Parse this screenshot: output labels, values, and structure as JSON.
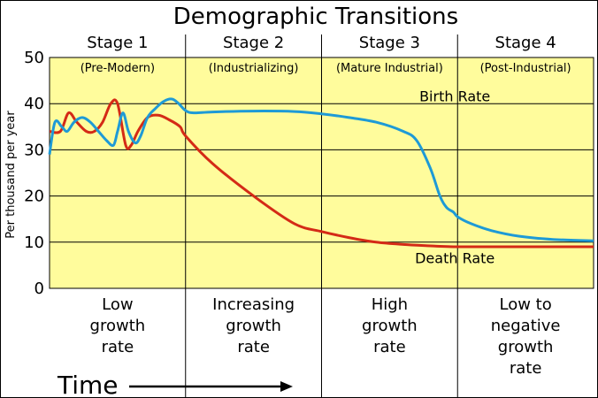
{
  "chart_data": {
    "type": "line",
    "title": "Demographic Transitions",
    "ylabel": "Per thousand per year",
    "xlabel": "Time",
    "ylim": [
      0,
      50
    ],
    "yticks": [
      0,
      10,
      20,
      30,
      40,
      50
    ],
    "grid": true,
    "stages": [
      {
        "label": "Stage 1",
        "sub": "(Pre-Modern)",
        "growth": [
          "Low",
          "growth",
          "rate"
        ]
      },
      {
        "label": "Stage 2",
        "sub": "(Industrializing)",
        "growth": [
          "Increasing",
          "growth",
          "rate"
        ]
      },
      {
        "label": "Stage 3",
        "sub": "(Mature Industrial)",
        "growth": [
          "High",
          "growth",
          "rate"
        ]
      },
      {
        "label": "Stage 4",
        "sub": "(Post-Industrial)",
        "growth": [
          "Low to",
          "negative",
          "growth",
          "rate"
        ]
      }
    ],
    "x_domain": [
      0,
      4
    ],
    "series": [
      {
        "name": "Birth Rate",
        "color": "#1e9ad6",
        "x": [
          0,
          0.04,
          0.09,
          0.13,
          0.18,
          0.24,
          0.3,
          0.36,
          0.42,
          0.47,
          0.5,
          0.54,
          0.58,
          0.63,
          0.67,
          0.72,
          0.78,
          0.84,
          0.9,
          0.95,
          1.0,
          1.06,
          1.2,
          1.5,
          1.8,
          2.0,
          2.2,
          2.4,
          2.6,
          2.7,
          2.8,
          2.87,
          2.92,
          2.97,
          3.0,
          3.1,
          3.25,
          3.45,
          3.7,
          4.0
        ],
        "y": [
          29,
          36,
          35,
          34,
          36,
          37,
          36,
          34,
          32,
          31,
          34,
          38,
          34,
          31.5,
          33,
          37,
          39,
          40.5,
          41,
          40,
          38.5,
          38,
          38.2,
          38.4,
          38.3,
          37.8,
          37,
          36,
          34,
          32,
          26,
          20,
          17.5,
          16.5,
          15.5,
          14,
          12.5,
          11.3,
          10.6,
          10.3
        ]
      },
      {
        "name": "Death Rate",
        "color": "#d42a16",
        "x": [
          0,
          0.08,
          0.14,
          0.2,
          0.27,
          0.33,
          0.39,
          0.45,
          0.5,
          0.56,
          0.6,
          0.65,
          0.72,
          0.8,
          0.88,
          0.96,
          1.0,
          1.2,
          1.5,
          1.8,
          2.0,
          2.2,
          2.4,
          2.6,
          2.8,
          3.0,
          3.5,
          4.0
        ],
        "y": [
          34,
          34,
          38,
          36,
          34,
          34,
          36,
          40,
          40,
          31,
          31,
          34,
          37,
          37.5,
          36.5,
          35,
          33,
          27,
          20,
          14,
          12.3,
          11,
          10,
          9.5,
          9.2,
          9,
          9,
          9
        ]
      }
    ],
    "annotations": [
      {
        "text": "Birth Rate",
        "series": "Birth Rate"
      },
      {
        "text": "Death Rate",
        "series": "Death Rate"
      }
    ]
  }
}
